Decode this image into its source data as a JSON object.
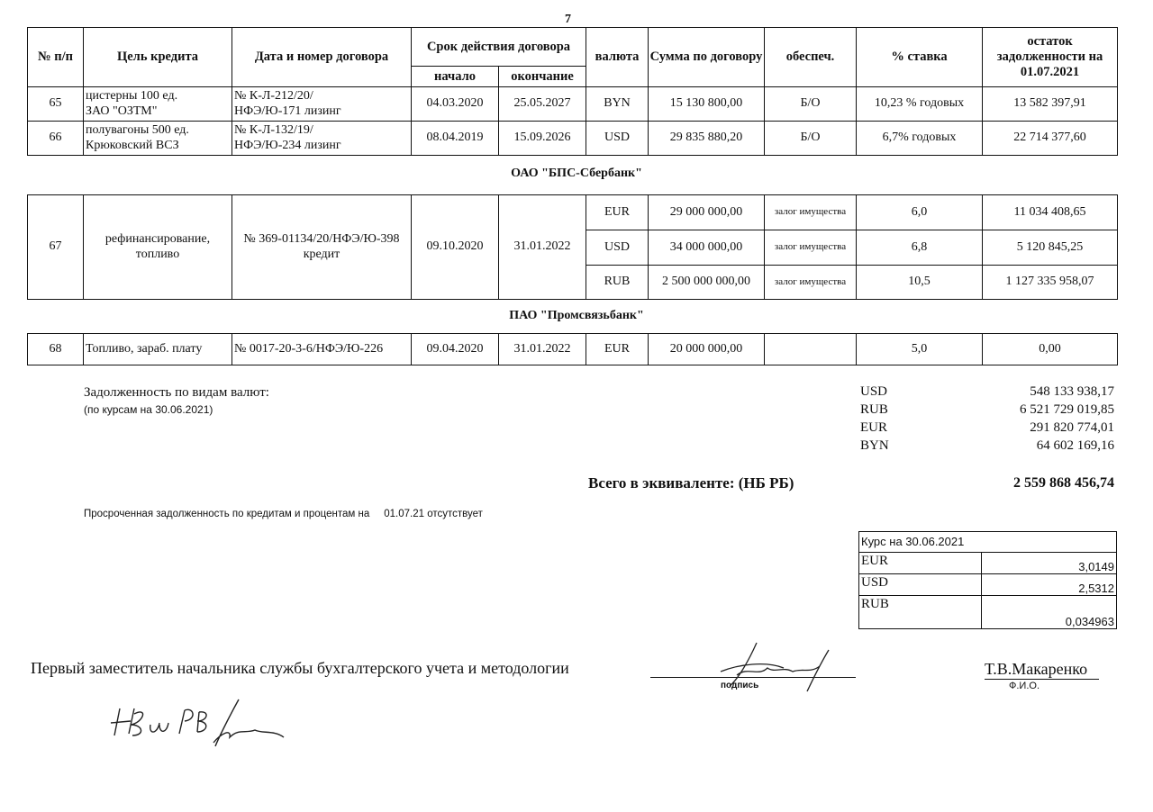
{
  "page_number": "7",
  "headers": {
    "num": "№ п/п",
    "purpose": "Цель кредита",
    "contract": "Дата и номер договора",
    "term": "Срок действия договора",
    "start": "начало",
    "end": "окончание",
    "currency": "валюта",
    "amount": "Сумма по договору",
    "security": "обеспеч.",
    "rate": "% ставка",
    "balance": "остаток задолженности на 01.07.2021"
  },
  "rows1": [
    {
      "num": "65",
      "purpose_1": "цистерны 100 ед.",
      "purpose_2": "ЗАО \"ОЗТМ\"",
      "contract_1": "№ К-Л-212/20/",
      "contract_2": "НФЭ/Ю-171  лизинг",
      "start": "04.03.2020",
      "end": "25.05.2027",
      "currency": "BYN",
      "amount": "15 130 800,00",
      "security": "Б/О",
      "rate": "10,23 % годовых",
      "balance": "13 582 397,91"
    },
    {
      "num": "66",
      "purpose_1": "полувагоны 500 ед.",
      "purpose_2": "Крюковский ВСЗ",
      "contract_1": "№ К-Л-132/19/",
      "contract_2": "НФЭ/Ю-234  лизинг",
      "start": "08.04.2019",
      "end": "15.09.2026",
      "currency": "USD",
      "amount": "29 835 880,20",
      "security": "Б/О",
      "rate": "6,7% годовых",
      "balance": "22 714 377,60"
    }
  ],
  "bank2": "ОАО \"БПС-Сбербанк\"",
  "row67": {
    "num": "67",
    "purpose": "рефинансирование, топливо",
    "contract": "№ 369-01134/20/НФЭ/Ю-398 кредит",
    "start": "09.10.2020",
    "end": "31.01.2022",
    "lines": [
      {
        "currency": "EUR",
        "amount": "29 000 000,00",
        "security": "залог имущества",
        "rate": "6,0",
        "balance": "11 034 408,65"
      },
      {
        "currency": "USD",
        "amount": "34 000 000,00",
        "security": "залог имущества",
        "rate": "6,8",
        "balance": "5 120 845,25"
      },
      {
        "currency": "RUB",
        "amount": "2 500 000 000,00",
        "security": "залог имущества",
        "rate": "10,5",
        "balance": "1 127 335 958,07"
      }
    ]
  },
  "bank3": "ПАО \"Промсвязьбанк\"",
  "row68": {
    "num": "68",
    "purpose": "Топливо, зараб. плату",
    "contract": "№ 0017-20-3-6/НФЭ/Ю-226",
    "start": "09.04.2020",
    "end": "31.01.2022",
    "currency": "EUR",
    "amount": "20 000 000,00",
    "security": "",
    "rate": "5,0",
    "balance": "0,00"
  },
  "summary": {
    "label": "Задолженность  по видам валют:",
    "note": "(по курсам на 30.06.2021)",
    "items": [
      {
        "cur": "USD",
        "val": "548 133 938,17"
      },
      {
        "cur": "RUB",
        "val": "6 521 729 019,85"
      },
      {
        "cur": "EUR",
        "val": "291 820 774,01"
      },
      {
        "cur": "BYN",
        "val": "64 602 169,16"
      }
    ],
    "total_label": "Всего в эквиваленте: (НБ РБ)",
    "total": "2 559 868 456,74"
  },
  "overdue": {
    "text": "Просроченная задолженность по кредитам и процентам на",
    "date": "01.07.21",
    "status": "отсутствует"
  },
  "rates": {
    "title": "Курс на 30.06.2021",
    "items": [
      {
        "cur": "EUR",
        "val": "3,0149"
      },
      {
        "cur": "USD",
        "val": "2,5312"
      },
      {
        "cur": "RUB",
        "val": "0,034963"
      }
    ]
  },
  "footer": {
    "position": "Первый заместитель начальника службы бухгалтерского учета и методологии",
    "signature_label": "подпись",
    "name": "Т.В.Макаренко",
    "name_label": "Ф.И.О.",
    "handwritten_note": "НБм РВ"
  }
}
